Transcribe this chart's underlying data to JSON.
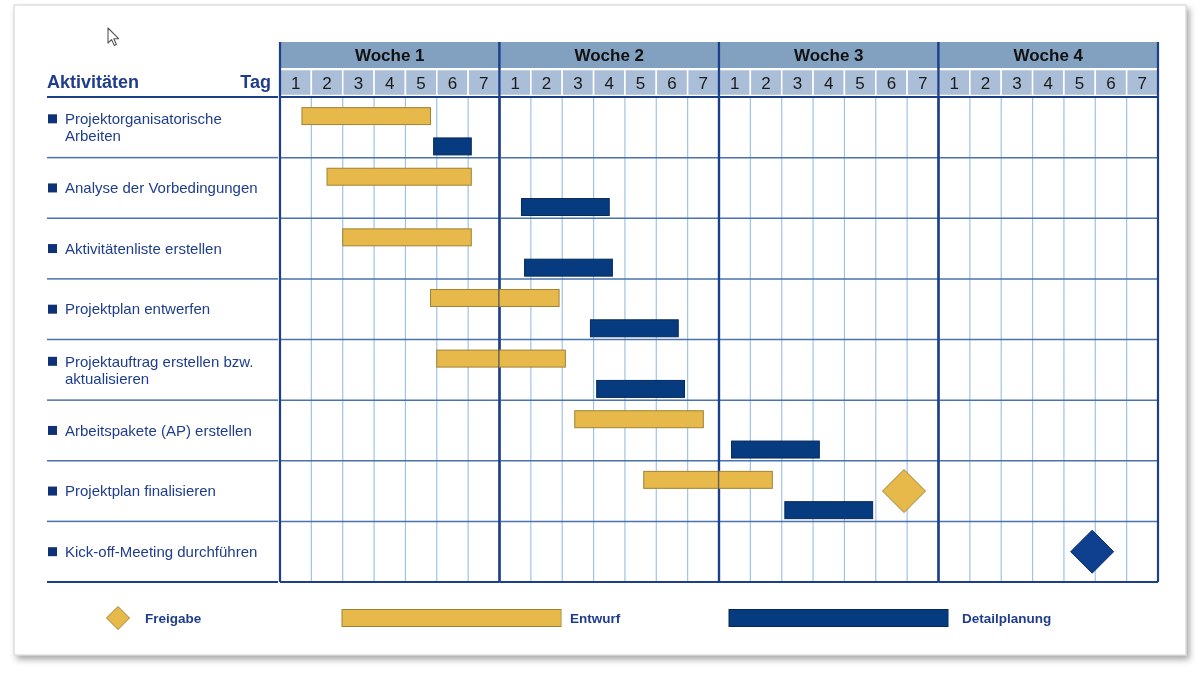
{
  "chart_data": [
    {
      "type": "bar",
      "orientation": "horizontal",
      "title": "Woche 1",
      "ylabel": "Aktivitäten",
      "xlabel": "Tag",
      "categories": [
        "Projektorganisatorische Arbeiten",
        "Analyse der Vorbedingungen",
        "Aktivitätenliste erstellen",
        "Projektplan entwerfen",
        "Projektauftrag erstellen bzw. aktualisieren",
        "Arbeitspakete (AP) erstellen",
        "Projektplan finalisieren",
        "Kick-off-Meeting durchführen"
      ],
      "xlim": [
        0.5,
        7.5
      ],
      "xticks": [
        1,
        2,
        3,
        4,
        5,
        6,
        7
      ],
      "series": [
        {
          "color": "#e6b94a",
          "base": [
            1.2,
            2.0,
            2.5,
            5.3,
            5.5,
            null,
            null,
            null
          ],
          "values": [
            4.1,
            4.6,
            4.1,
            2.2,
            2.0,
            null,
            null,
            null
          ]
        },
        {
          "color": "#073b7f",
          "base": [
            5.4,
            null,
            null,
            null,
            null,
            null,
            null,
            null
          ],
          "values": [
            1.2,
            null,
            null,
            null,
            null,
            null,
            null,
            null
          ]
        }
      ],
      "ref_lines": [
        {
          "axis": "x",
          "value": 1.5,
          "color": "#9fc3e4"
        },
        {
          "axis": "x",
          "value": 2.5,
          "color": "#9fc3e4"
        },
        {
          "axis": "x",
          "value": 3.5,
          "color": "#9fc3e4"
        },
        {
          "axis": "x",
          "value": 4.5,
          "color": "#9fc3e4"
        },
        {
          "axis": "x",
          "value": 5.5,
          "color": "#9fc3e4"
        },
        {
          "axis": "x",
          "value": 6.5,
          "color": "#9fc3e4"
        }
      ],
      "grid": "y"
    },
    {
      "type": "bar",
      "orientation": "horizontal",
      "title": "Woche 2",
      "categories": [
        null,
        null,
        null,
        null,
        null,
        null,
        null,
        null
      ],
      "xlim": [
        0.5,
        7.5
      ],
      "xticks": [
        1,
        2,
        3,
        4,
        5,
        6,
        7
      ],
      "tick_labels": "x",
      "series": [
        {
          "color": "#e6b94a",
          "base": [
            null,
            null,
            null,
            0.5,
            0.5,
            2.9,
            5.1,
            null
          ],
          "values": [
            null,
            null,
            null,
            1.9,
            2.1,
            4.1,
            2.4,
            null
          ]
        },
        {
          "color": "#073b7f",
          "base": [
            null,
            1.2,
            1.3,
            3.4,
            3.6,
            null,
            null,
            null
          ],
          "values": [
            null,
            2.8,
            2.8,
            2.8,
            2.8,
            null,
            null,
            null
          ]
        }
      ],
      "ref_lines": [
        {
          "axis": "x",
          "value": 1.5,
          "color": "#9fc3e4"
        },
        {
          "axis": "x",
          "value": 2.5,
          "color": "#9fc3e4"
        },
        {
          "axis": "x",
          "value": 3.5,
          "color": "#9fc3e4"
        },
        {
          "axis": "x",
          "value": 4.5,
          "color": "#9fc3e4"
        },
        {
          "axis": "x",
          "value": 5.5,
          "color": "#9fc3e4"
        },
        {
          "axis": "x",
          "value": 6.5,
          "color": "#9fc3e4"
        }
      ],
      "grid": "y"
    },
    {
      "type": "bar",
      "orientation": "horizontal",
      "title": "Woche 3",
      "categories": [
        null,
        null,
        null,
        null,
        null,
        null,
        null,
        null
      ],
      "xlim": [
        0.5,
        7.5
      ],
      "xticks": [
        1,
        2,
        3,
        4,
        5,
        6,
        7
      ],
      "tick_labels": "x",
      "series": [
        {
          "name": "Freigabe",
          "type": "scatter",
          "color": "#e6b94a",
          "values": [
            null,
            null,
            null,
            null,
            null,
            null,
            6.4,
            null
          ]
        },
        {
          "name": "Entwurf",
          "color": "#e6b94a",
          "base": [
            null,
            null,
            null,
            null,
            null,
            null,
            0.5,
            null
          ],
          "values": [
            null,
            null,
            null,
            null,
            null,
            null,
            1.7,
            null
          ]
        },
        {
          "name": "Detailplanung",
          "color": "#073b7f",
          "base": [
            null,
            null,
            null,
            null,
            null,
            0.9,
            2.6,
            null
          ],
          "values": [
            null,
            null,
            null,
            null,
            null,
            2.8,
            2.8,
            null
          ]
        }
      ],
      "ref_lines": [
        {
          "axis": "x",
          "value": 1.5,
          "color": "#9fc3e4"
        },
        {
          "axis": "x",
          "value": 2.5,
          "color": "#9fc3e4"
        },
        {
          "axis": "x",
          "value": 3.5,
          "color": "#9fc3e4"
        },
        {
          "axis": "x",
          "value": 4.5,
          "color": "#9fc3e4"
        },
        {
          "axis": "x",
          "value": 5.5,
          "color": "#9fc3e4"
        },
        {
          "axis": "x",
          "value": 6.5,
          "color": "#9fc3e4"
        }
      ],
      "marker": "diamond",
      "grid": "y",
      "legend": "bottom"
    },
    {
      "type": "bar",
      "orientation": "horizontal",
      "title": "Woche 4",
      "categories": [
        null,
        null,
        null,
        null,
        null,
        null,
        null,
        null
      ],
      "xlim": [
        0.5,
        7.5
      ],
      "xticks": [
        1,
        2,
        3,
        4,
        5,
        6,
        7
      ],
      "tick_labels": "x",
      "series": [
        {
          "type": "scatter",
          "color": "#0f3f8f",
          "values": [
            null,
            null,
            null,
            null,
            null,
            null,
            null,
            5.4
          ]
        }
      ],
      "ref_lines": [
        {
          "axis": "x",
          "value": 1.5,
          "color": "#9fc3e4"
        },
        {
          "axis": "x",
          "value": 2.5,
          "color": "#9fc3e4"
        },
        {
          "axis": "x",
          "value": 3.5,
          "color": "#9fc3e4"
        },
        {
          "axis": "x",
          "value": 4.5,
          "color": "#9fc3e4"
        },
        {
          "axis": "x",
          "value": 5.5,
          "color": "#9fc3e4"
        },
        {
          "axis": "x",
          "value": 6.5,
          "color": "#9fc3e4"
        }
      ],
      "marker": "diamond",
      "grid": "y"
    }
  ]
}
